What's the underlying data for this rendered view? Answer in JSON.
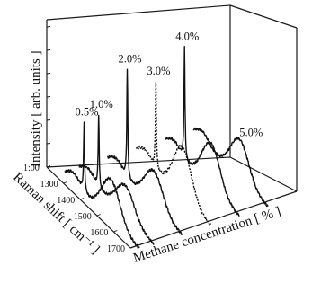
{
  "chart_data": {
    "type": "line",
    "title": "",
    "xlabel": "Raman shift [ cm⁻¹ ]",
    "zlabel": "Intensity [ arb. units ]",
    "depth_label": "Methane concentration [ % ]",
    "x_tick_labels": [
      "1:00",
      "1300",
      "1400",
      "1500",
      "1600",
      "1700"
    ],
    "x_range": [
      1200,
      1700
    ],
    "series": [
      {
        "name": "0.5%",
        "concentration": 0.5,
        "peak_position": 1330,
        "peak_height": 0.38,
        "shoulder_height": 0.23
      },
      {
        "name": "1.0%",
        "concentration": 1.0,
        "peak_position": 1332,
        "peak_height": 0.4,
        "shoulder_height": 0.17
      },
      {
        "name": "2.0%",
        "concentration": 2.0,
        "peak_position": 1332,
        "peak_height": 0.6,
        "shoulder_height": 0.2
      },
      {
        "name": "3.0%",
        "concentration": 3.0,
        "peak_position": 1332,
        "peak_height": 0.48,
        "shoulder_height": 0.28
      },
      {
        "name": "4.0%",
        "concentration": 4.0,
        "peak_position": 1332,
        "peak_height": 0.62,
        "shoulder_height": 0.25
      },
      {
        "name": "5.0%",
        "concentration": 5.0,
        "peak_position": 1332,
        "peak_height": 0.0,
        "shoulder_height": 0.22
      }
    ],
    "grid": false,
    "legend": "none"
  }
}
